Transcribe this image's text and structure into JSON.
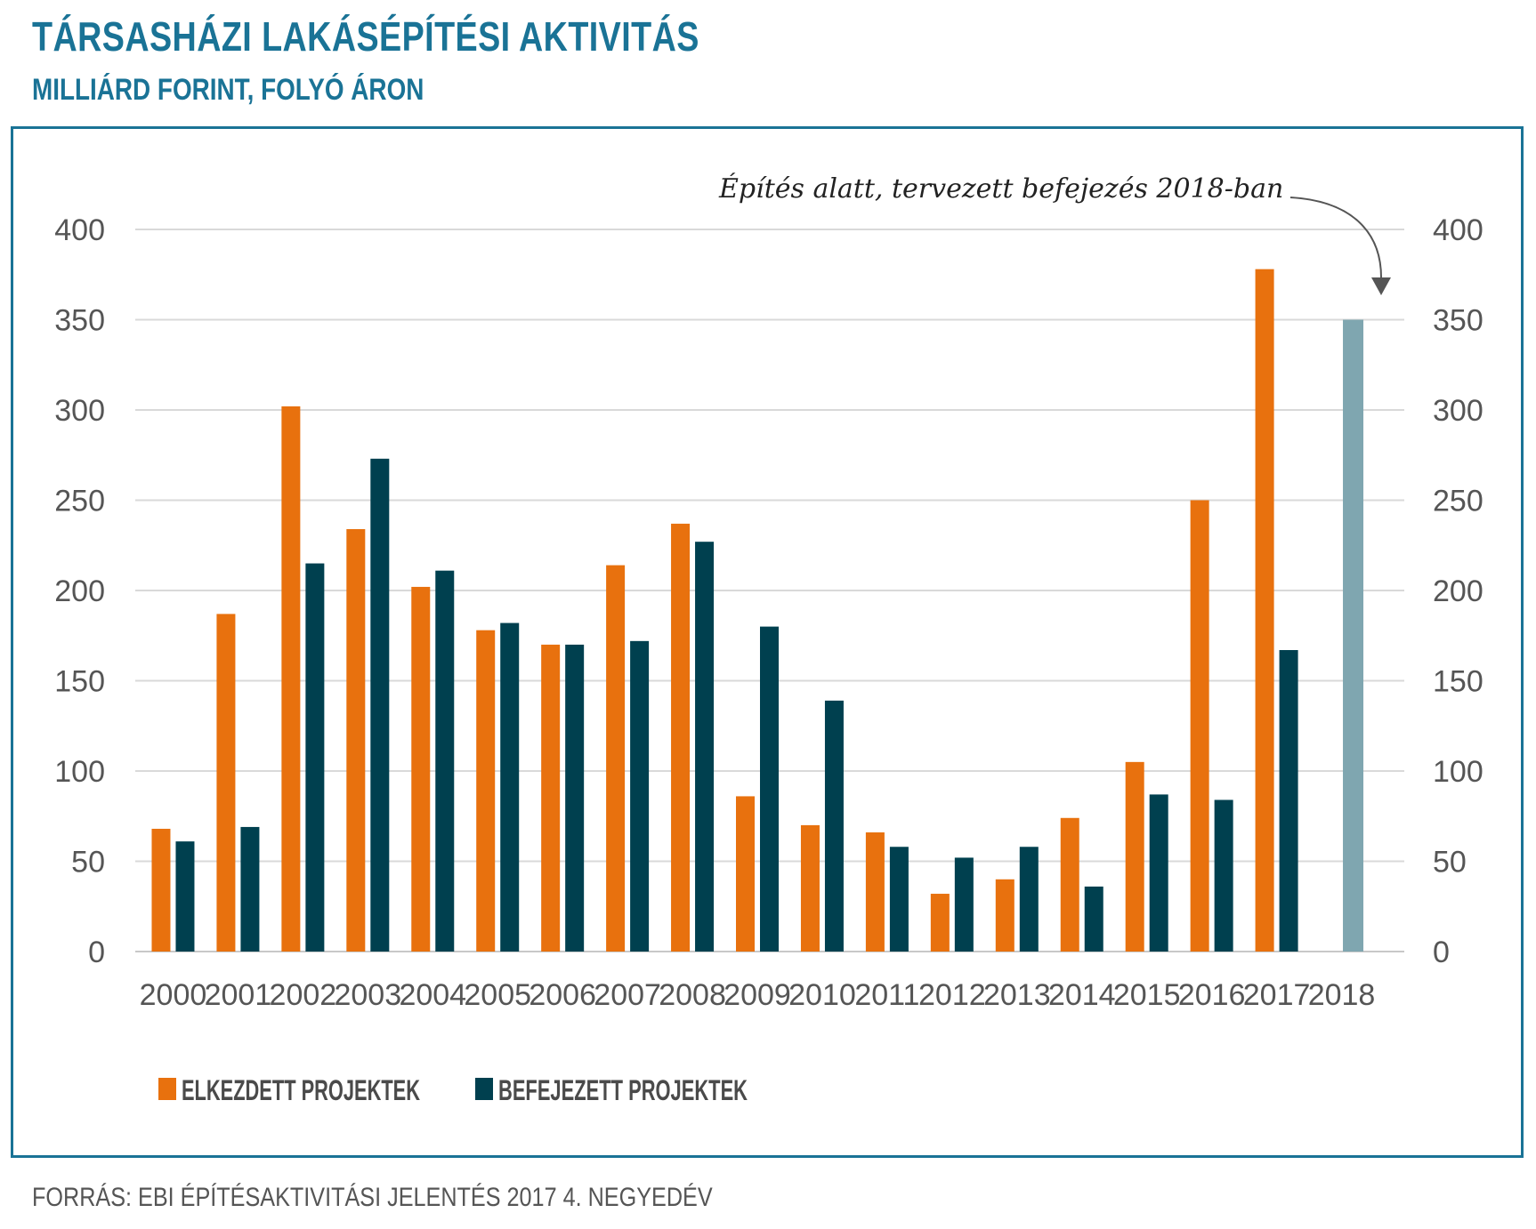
{
  "header": {
    "title": "TÁRSASHÁZI LAKÁSÉPÍTÉSI AKTIVITÁS",
    "subtitle": "MILLIÁRD FORINT, FOLYÓ ÁRON"
  },
  "footer": {
    "source": "FORRÁS: EBI ÉPÍTÉSAKTIVITÁSI JELENTÉS 2017 4. NEGYEDÉV"
  },
  "colors": {
    "brand": "#1a7396",
    "started": "#e8710e",
    "completed": "#00404f",
    "planned": "#7fa6b0",
    "grid": "#d9d9d9"
  },
  "chart_data": {
    "type": "bar",
    "title": "TÁRSASHÁZI LAKÁSÉPÍTÉSI AKTIVITÁS",
    "subtitle": "MILLIÁRD FORINT, FOLYÓ ÁRON",
    "xlabel": "",
    "ylabel": "",
    "ylim": [
      0,
      400
    ],
    "yticks": [
      0,
      50,
      100,
      150,
      200,
      250,
      300,
      350,
      400
    ],
    "grid": true,
    "legend_position": "bottom-left",
    "categories": [
      "2000",
      "2001",
      "2002",
      "2003",
      "2004",
      "2005",
      "2006",
      "2007",
      "2008",
      "2009",
      "2010",
      "2011",
      "2012",
      "2013",
      "2014",
      "2015",
      "2016",
      "2017",
      "2018"
    ],
    "series": [
      {
        "name": "ELKEZDETT PROJEKTEK",
        "color": "#e8710e",
        "values": [
          68,
          187,
          302,
          234,
          202,
          178,
          170,
          214,
          237,
          86,
          70,
          66,
          32,
          40,
          74,
          105,
          250,
          378,
          null
        ]
      },
      {
        "name": "BEFEJEZETT PROJEKTEK",
        "color": "#00404f",
        "values": [
          61,
          69,
          215,
          273,
          211,
          182,
          170,
          172,
          227,
          180,
          139,
          58,
          52,
          58,
          36,
          87,
          84,
          167,
          null
        ]
      },
      {
        "name": "Építés alatt, tervezett befejezés 2018-ban",
        "color": "#7fa6b0",
        "values": [
          null,
          null,
          null,
          null,
          null,
          null,
          null,
          null,
          null,
          null,
          null,
          null,
          null,
          null,
          null,
          null,
          null,
          null,
          350
        ]
      }
    ],
    "annotation": {
      "text": "Építés alatt, tervezett befejezés 2018-ban",
      "target": "2018"
    }
  }
}
